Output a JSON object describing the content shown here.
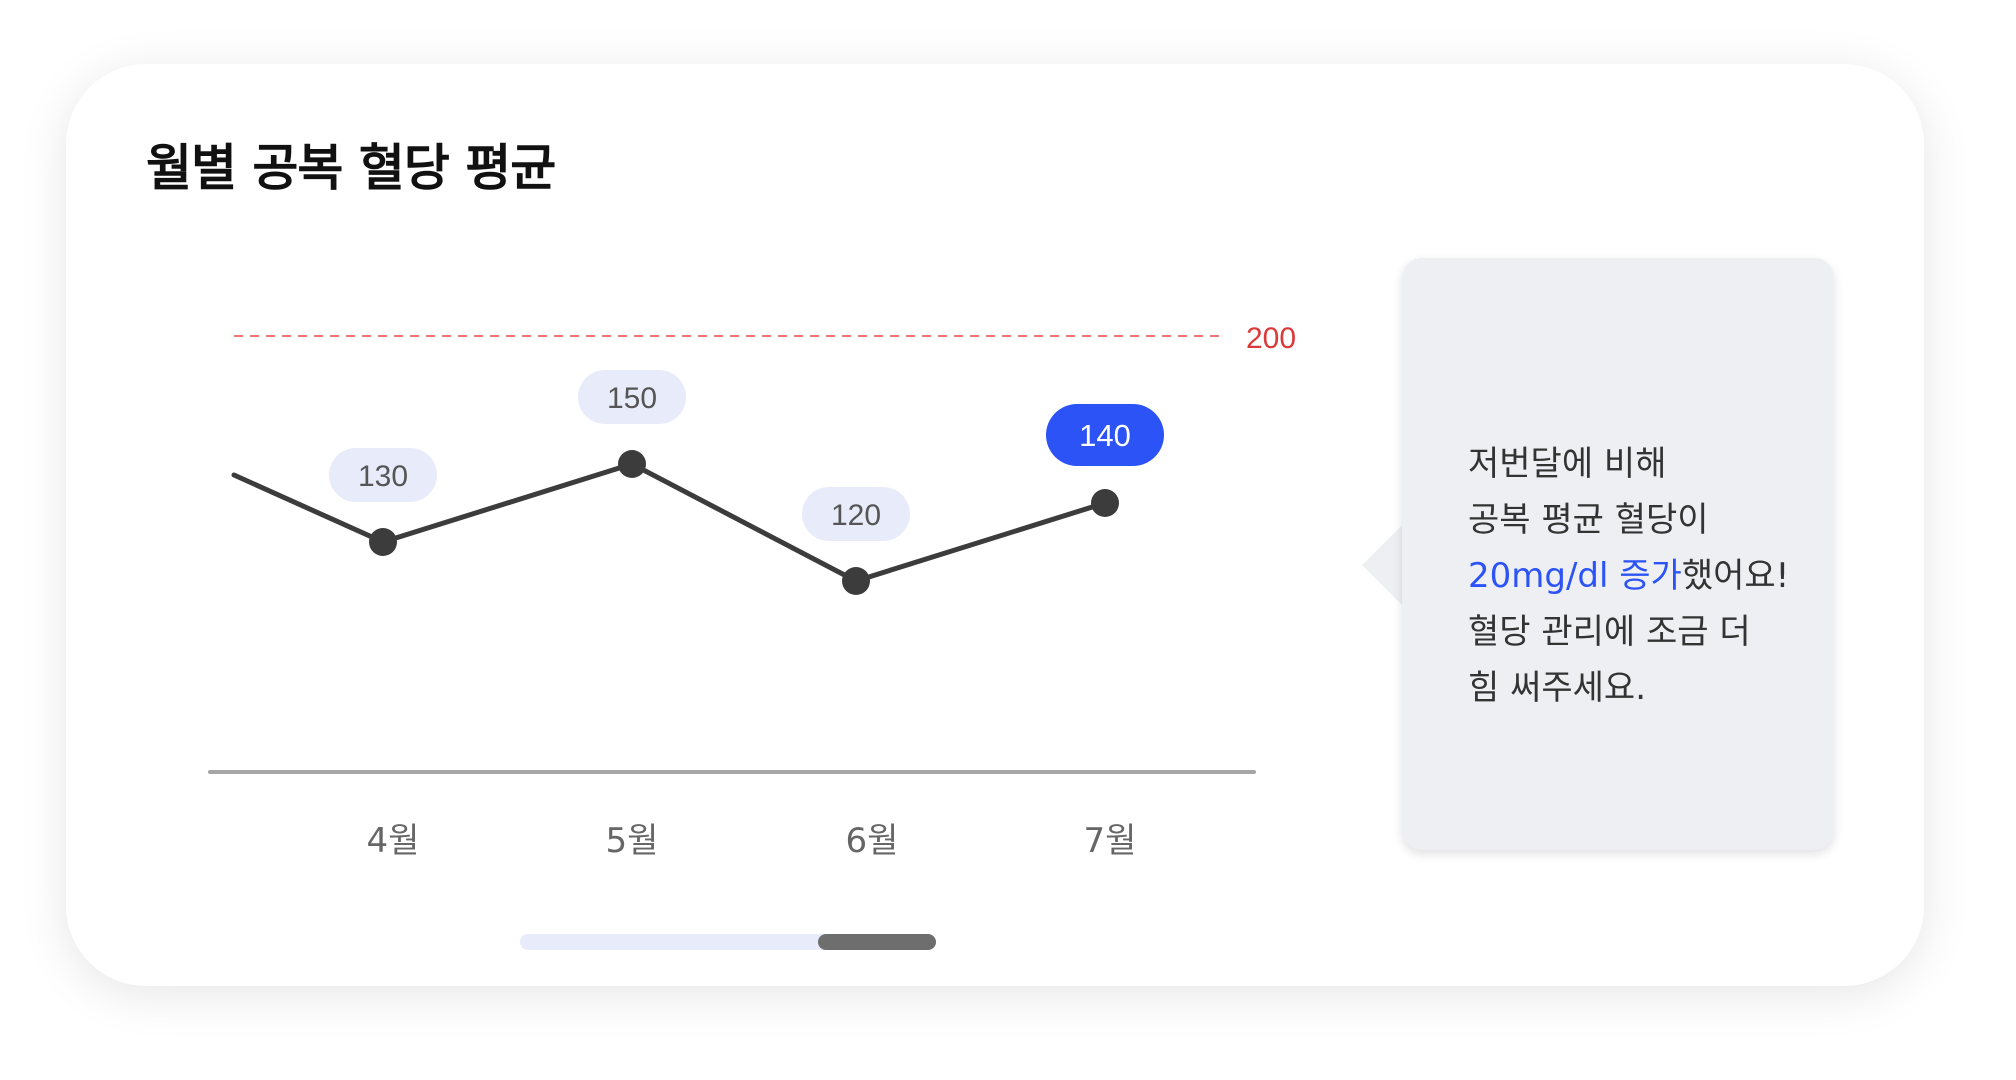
{
  "title": "월별 공복 혈당 평균",
  "chart_data": {
    "type": "line",
    "categories": [
      "4월",
      "5월",
      "6월",
      "7월"
    ],
    "values": [
      130,
      150,
      120,
      140
    ],
    "highlight_index": 3,
    "ylim": [
      0,
      200
    ],
    "reference_line": {
      "value": 200,
      "label": "200",
      "color": "#e74c4c"
    },
    "line_color": "#3c3c3c",
    "label_bg": "#e8ebfa",
    "highlight_color": "#2b53f6"
  },
  "insight": {
    "line1": "저번달에 비해",
    "line2": "공복 평균 혈당이",
    "line3_accent": "20mg/dl 증가",
    "line3_rest": "했어요!",
    "line4": "혈당 관리에 조금 더",
    "line5": "힘 써주세요."
  }
}
